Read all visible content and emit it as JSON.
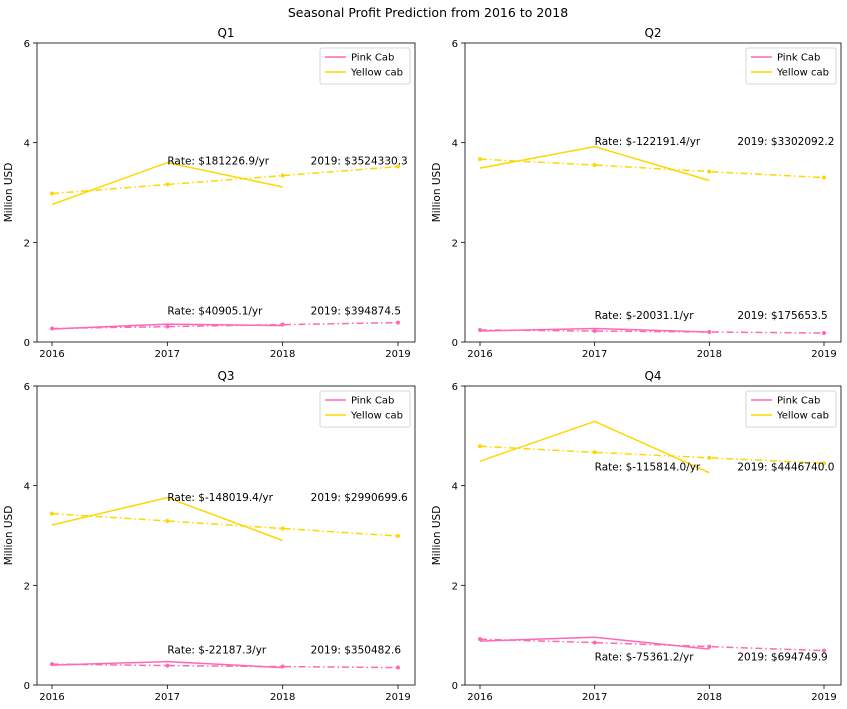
{
  "figure_title": "Seasonal Profit Prediction from 2016 to 2018",
  "colors": {
    "pink": "#ff69b4",
    "yellow": "#ffd700"
  },
  "legend": [
    "Pink Cab",
    "Yellow cab"
  ],
  "chart_data": [
    {
      "type": "line",
      "title": "Q1",
      "ylabel": "Million USD",
      "x_ticks": [
        "2016",
        "2017",
        "2018",
        "2019"
      ],
      "y_ticks": [
        "0",
        "2",
        "4",
        "6"
      ],
      "ylim": [
        0,
        6
      ],
      "legend_position": "top-right",
      "series": [
        {
          "name": "Pink Cab",
          "style": "solid",
          "x": [
            2016,
            2017,
            2018
          ],
          "values": [
            0.26,
            0.36,
            0.33
          ]
        },
        {
          "name": "Yellow cab",
          "style": "solid",
          "x": [
            2016,
            2017,
            2018
          ],
          "values": [
            2.76,
            3.6,
            3.11
          ]
        },
        {
          "style": "dashdot",
          "x": [
            2016,
            2017,
            2018,
            2019
          ],
          "values": [
            0.27,
            0.31,
            0.35,
            0.39
          ]
        },
        {
          "style": "dashdot",
          "x": [
            2016,
            2017,
            2018,
            2019
          ],
          "values": [
            2.98,
            3.16,
            3.34,
            3.52
          ]
        }
      ],
      "annotations": {
        "yellow_rate": "Rate: $181226.9/yr",
        "yellow_2019": "2019: $3524330.3",
        "pink_rate": "Rate: $40905.1/yr",
        "pink_2019": "2019: $394874.5"
      }
    },
    {
      "type": "line",
      "title": "Q2",
      "ylabel": "Million USD",
      "x_ticks": [
        "2016",
        "2017",
        "2018",
        "2019"
      ],
      "y_ticks": [
        "0",
        "2",
        "4",
        "6"
      ],
      "ylim": [
        0,
        6
      ],
      "legend_position": "top-right",
      "series": [
        {
          "name": "Pink Cab",
          "style": "solid",
          "x": [
            2016,
            2017,
            2018
          ],
          "values": [
            0.22,
            0.27,
            0.2
          ]
        },
        {
          "name": "Yellow cab",
          "style": "solid",
          "x": [
            2016,
            2017,
            2018
          ],
          "values": [
            3.49,
            3.92,
            3.24
          ]
        },
        {
          "style": "dashdot",
          "x": [
            2016,
            2017,
            2018,
            2019
          ],
          "values": [
            0.24,
            0.22,
            0.2,
            0.18
          ]
        },
        {
          "style": "dashdot",
          "x": [
            2016,
            2017,
            2018,
            2019
          ],
          "values": [
            3.67,
            3.55,
            3.42,
            3.3
          ]
        }
      ],
      "annotations": {
        "yellow_rate": "Rate: $-122191.4/yr",
        "yellow_2019": "2019: $3302092.2",
        "pink_rate": "Rate: $-20031.1/yr",
        "pink_2019": "2019: $175653.5"
      }
    },
    {
      "type": "line",
      "title": "Q3",
      "ylabel": "Million USD",
      "x_ticks": [
        "2016",
        "2017",
        "2018",
        "2019"
      ],
      "y_ticks": [
        "0",
        "2",
        "4",
        "6"
      ],
      "ylim": [
        0,
        6
      ],
      "legend_position": "top-right",
      "series": [
        {
          "name": "Pink Cab",
          "style": "solid",
          "x": [
            2016,
            2017,
            2018
          ],
          "values": [
            0.4,
            0.47,
            0.35
          ]
        },
        {
          "name": "Yellow cab",
          "style": "solid",
          "x": [
            2016,
            2017,
            2018
          ],
          "values": [
            3.21,
            3.76,
            2.9
          ]
        },
        {
          "style": "dashdot",
          "x": [
            2016,
            2017,
            2018,
            2019
          ],
          "values": [
            0.42,
            0.39,
            0.37,
            0.35
          ]
        },
        {
          "style": "dashdot",
          "x": [
            2016,
            2017,
            2018,
            2019
          ],
          "values": [
            3.44,
            3.29,
            3.14,
            2.99
          ]
        }
      ],
      "annotations": {
        "yellow_rate": "Rate: $-148019.4/yr",
        "yellow_2019": "2019: $2990699.6",
        "pink_rate": "Rate: $-22187.3/yr",
        "pink_2019": "2019: $350482.6"
      }
    },
    {
      "type": "line",
      "title": "Q4",
      "ylabel": "Million USD",
      "x_ticks": [
        "2016",
        "2017",
        "2018",
        "2019"
      ],
      "y_ticks": [
        "0",
        "2",
        "4",
        "6"
      ],
      "ylim": [
        0,
        6
      ],
      "legend_position": "top-right",
      "series": [
        {
          "name": "Pink Cab",
          "style": "solid",
          "x": [
            2016,
            2017,
            2018
          ],
          "values": [
            0.88,
            0.96,
            0.72
          ]
        },
        {
          "name": "Yellow cab",
          "style": "solid",
          "x": [
            2016,
            2017,
            2018
          ],
          "values": [
            4.49,
            5.29,
            4.26
          ]
        },
        {
          "style": "dashdot",
          "x": [
            2016,
            2017,
            2018,
            2019
          ],
          "values": [
            0.92,
            0.85,
            0.77,
            0.69
          ]
        },
        {
          "style": "dashdot",
          "x": [
            2016,
            2017,
            2018,
            2019
          ],
          "values": [
            4.79,
            4.67,
            4.56,
            4.45
          ]
        }
      ],
      "annotations": {
        "yellow_rate": "Rate: $-115814.0/yr",
        "yellow_2019": "2019: $4446740.0",
        "pink_rate": "Rate: $-75361.2/yr",
        "pink_2019": "2019: $694749.9"
      }
    }
  ]
}
